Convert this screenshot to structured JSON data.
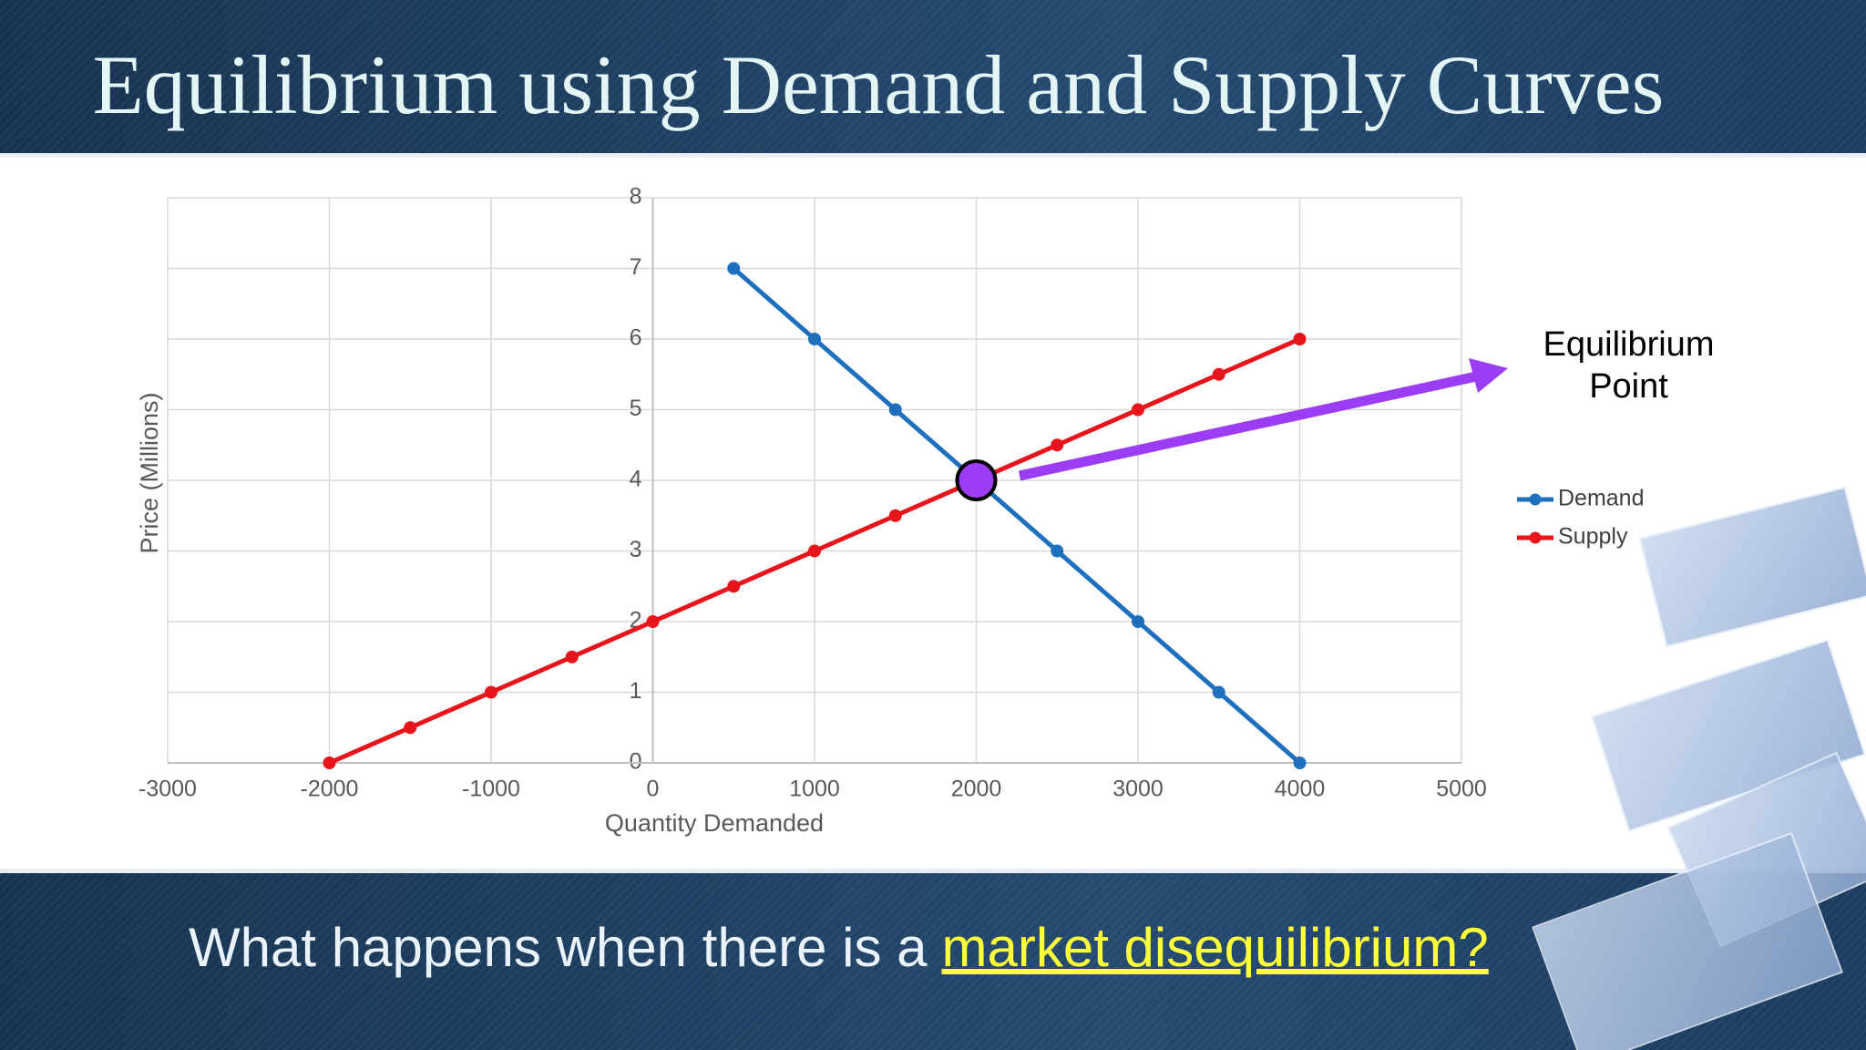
{
  "slide": {
    "title": "Equilibrium using Demand and Supply Curves",
    "question": "What happens when there is a",
    "question_highlight": "market disequilibrium?"
  },
  "chart_data": {
    "type": "line",
    "x_label": "Quantity Demanded",
    "y_label": "Price (Millions)",
    "xlim": [
      -3000,
      5000
    ],
    "xticks": [
      -3000,
      -2000,
      -1000,
      0,
      1000,
      2000,
      3000,
      4000,
      5000
    ],
    "ylim": [
      0,
      8
    ],
    "yticks": [
      0,
      1,
      2,
      3,
      4,
      5,
      6,
      7,
      8
    ],
    "grid": true,
    "legend": "right",
    "series": [
      {
        "name": "Demand",
        "color": "#1f6fbf",
        "x": [
          500,
          1000,
          1500,
          2000,
          2500,
          3000,
          3500,
          4000
        ],
        "values": [
          7,
          6,
          5,
          4,
          3,
          2,
          1,
          0
        ]
      },
      {
        "name": "Supply",
        "color": "#e8141b",
        "x": [
          -2000,
          -1500,
          -1000,
          -500,
          0,
          500,
          1000,
          1500,
          2000,
          2500,
          3000,
          3500,
          4000
        ],
        "values": [
          0,
          0.5,
          1,
          1.5,
          2,
          2.5,
          3,
          3.5,
          4,
          4.5,
          5,
          5.5,
          6
        ]
      }
    ],
    "equilibrium": {
      "x": 2000,
      "y": 4,
      "label": "Equilibrium Point",
      "color": "#9b3df5"
    }
  }
}
